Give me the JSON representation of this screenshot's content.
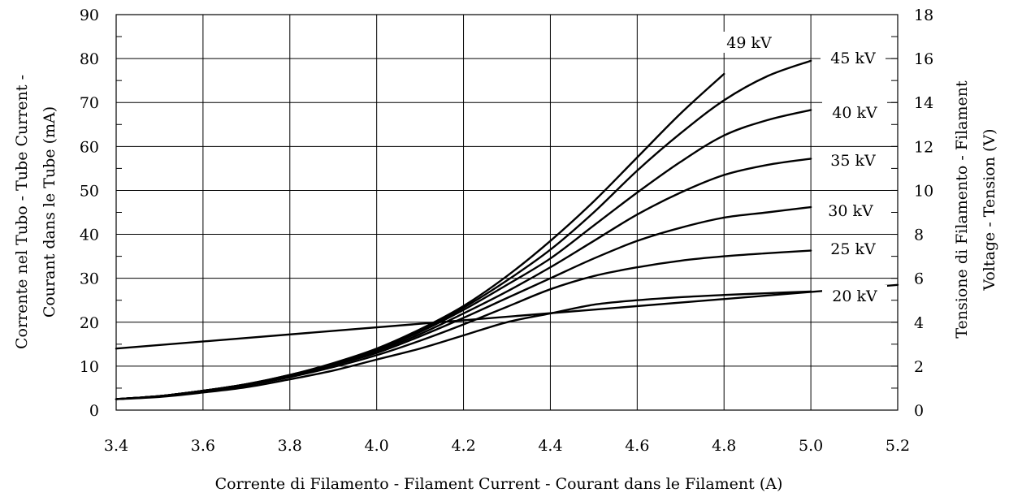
{
  "chart_data": {
    "type": "line",
    "xlabel": "Corrente di Filamento - Filament Current - Courant dans le Filament  (A)",
    "ylabel_left": [
      "Corrente nel Tubo - Tube Current -",
      "Courant dans le Tube   (mA)"
    ],
    "ylabel_right": [
      "Tensione di Filamento -     Filament",
      "Voltage - Tension  (V)"
    ],
    "xlim": [
      3.4,
      5.2
    ],
    "ylim_left": [
      0,
      90
    ],
    "ylim_right": [
      0,
      18
    ],
    "x_ticks": [
      "3.4",
      "3.6",
      "3.8",
      "4.0",
      "4.2",
      "4.4",
      "4.6",
      "4.8",
      "5.0",
      "5.2"
    ],
    "y_ticks_left": [
      "0",
      "10",
      "20",
      "30",
      "40",
      "50",
      "60",
      "70",
      "80",
      "90"
    ],
    "y_ticks_right": [
      "0",
      "2",
      "4",
      "6",
      "8",
      "10",
      "12",
      "14",
      "16",
      "18"
    ],
    "grid": true,
    "series": [
      {
        "name": "20 kV",
        "axis": "left",
        "x": [
          3.4,
          3.5,
          3.6,
          3.7,
          3.8,
          3.9,
          4.0,
          4.1,
          4.2,
          4.3,
          4.4,
          4.5,
          4.6,
          4.7,
          4.8,
          4.9,
          5.0
        ],
        "y": [
          2.5,
          3,
          4,
          5.2,
          7,
          9,
          11.5,
          14,
          17,
          20,
          22,
          24,
          25,
          25.7,
          26.2,
          26.6,
          27
        ]
      },
      {
        "name": "25 kV",
        "axis": "left",
        "x": [
          3.4,
          3.5,
          3.6,
          3.7,
          3.8,
          3.9,
          4.0,
          4.1,
          4.2,
          4.3,
          4.4,
          4.5,
          4.6,
          4.7,
          4.8,
          4.9,
          5.0
        ],
        "y": [
          2.5,
          3.1,
          4.2,
          5.6,
          7.5,
          9.8,
          12.5,
          15.8,
          19.5,
          23.5,
          27.5,
          30.5,
          32.5,
          34,
          35,
          35.7,
          36.3
        ]
      },
      {
        "name": "30 kV",
        "axis": "left",
        "x": [
          3.4,
          3.5,
          3.6,
          3.7,
          3.8,
          3.9,
          4.0,
          4.1,
          4.2,
          4.3,
          4.4,
          4.5,
          4.6,
          4.7,
          4.8,
          4.9,
          5.0
        ],
        "y": [
          2.5,
          3.2,
          4.4,
          5.8,
          7.7,
          10.2,
          13,
          16.8,
          21,
          25.5,
          30,
          34.5,
          38.5,
          41.5,
          43.8,
          45,
          46.2
        ]
      },
      {
        "name": "35 kV",
        "axis": "left",
        "x": [
          3.4,
          3.5,
          3.6,
          3.7,
          3.8,
          3.9,
          4.0,
          4.1,
          4.2,
          4.3,
          4.4,
          4.5,
          4.6,
          4.7,
          4.8,
          4.9,
          5.0
        ],
        "y": [
          2.5,
          3.2,
          4.4,
          5.8,
          7.8,
          10.4,
          13.4,
          17.3,
          22,
          27,
          32.5,
          38.5,
          44.5,
          49.5,
          53.5,
          55.8,
          57.2
        ]
      },
      {
        "name": "40 kV",
        "axis": "left",
        "x": [
          3.4,
          3.5,
          3.6,
          3.7,
          3.8,
          3.9,
          4.0,
          4.1,
          4.2,
          4.3,
          4.4,
          4.5,
          4.6,
          4.7,
          4.8,
          4.9,
          5.0
        ],
        "y": [
          2.5,
          3.2,
          4.4,
          5.9,
          7.9,
          10.5,
          13.7,
          17.8,
          22.8,
          28.5,
          34.5,
          42,
          49.5,
          56.5,
          62.5,
          66,
          68.3
        ]
      },
      {
        "name": "45 kV",
        "axis": "left",
        "x": [
          3.4,
          3.5,
          3.6,
          3.7,
          3.8,
          3.9,
          4.0,
          4.1,
          4.2,
          4.3,
          4.4,
          4.5,
          4.6,
          4.7,
          4.8,
          4.9,
          5.0
        ],
        "y": [
          2.5,
          3.2,
          4.4,
          5.9,
          8,
          10.6,
          13.9,
          18.1,
          23.3,
          29.5,
          36.5,
          45,
          54.5,
          63,
          70.5,
          76,
          79.5
        ]
      },
      {
        "name": "49 kV",
        "axis": "left",
        "x": [
          3.4,
          3.5,
          3.6,
          3.7,
          3.8,
          3.9,
          4.0,
          4.1,
          4.2,
          4.3,
          4.4,
          4.5,
          4.6,
          4.7,
          4.8
        ],
        "y": [
          2.5,
          3.2,
          4.4,
          5.9,
          8,
          10.7,
          14,
          18.4,
          23.7,
          30.5,
          38.5,
          47.5,
          57.5,
          67.5,
          76.5
        ]
      },
      {
        "name": "",
        "axis": "right",
        "x": [
          3.4,
          5.2
        ],
        "y": [
          2.8,
          5.7
        ]
      }
    ]
  }
}
